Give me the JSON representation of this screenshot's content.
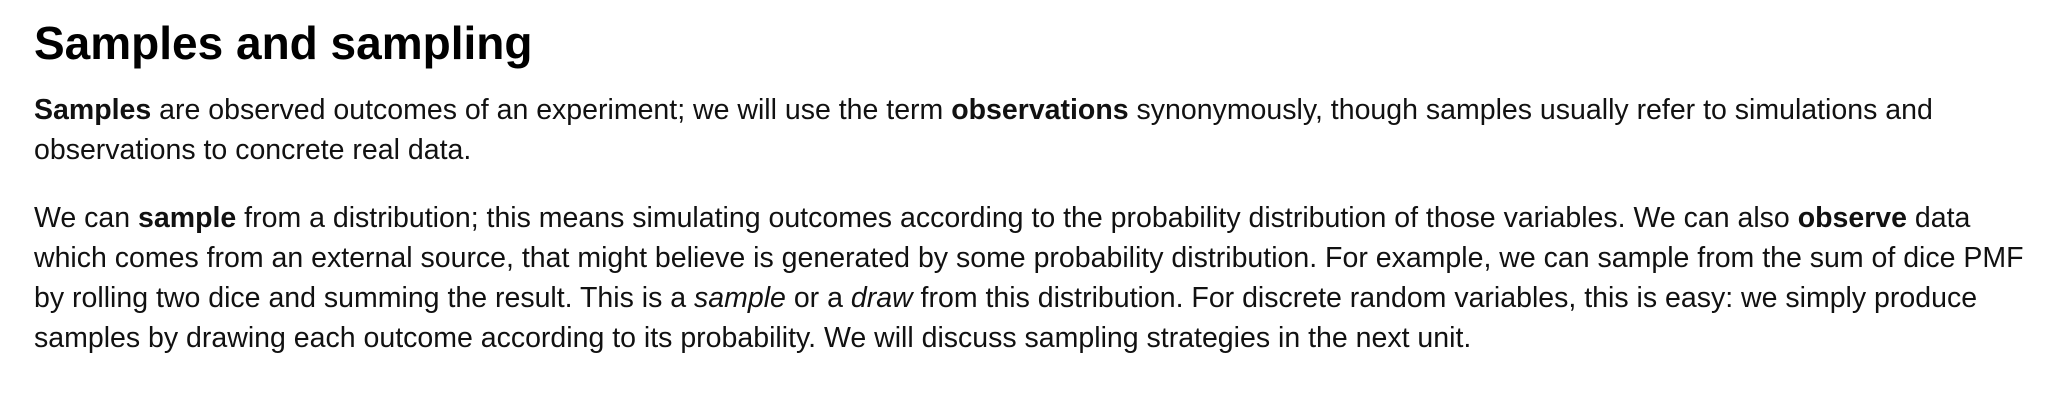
{
  "heading": "Samples and sampling",
  "p1": {
    "b1": "Samples",
    "t1": " are observed outcomes of an experiment; we will use the term ",
    "b2": "observations",
    "t2": " synonymously, though samples usually refer to simulations and observations to concrete real data."
  },
  "p2": {
    "t1": "We can ",
    "b1": "sample",
    "t2": " from a distribution; this means simulating outcomes according to the probability distribution of those variables. We can also ",
    "b2": "observe",
    "t3": " data which comes from an external source, that might believe is generated by some probability distribution. For example, we can sample from the sum of dice PMF by rolling two dice and summing the result. This is a ",
    "i1": "sample",
    "t4": " or a ",
    "i2": "draw",
    "t5": " from this distribution. For discrete random variables, this is easy: we simply produce samples by drawing each outcome according to its probability. We will discuss sampling strategies in the next unit."
  }
}
